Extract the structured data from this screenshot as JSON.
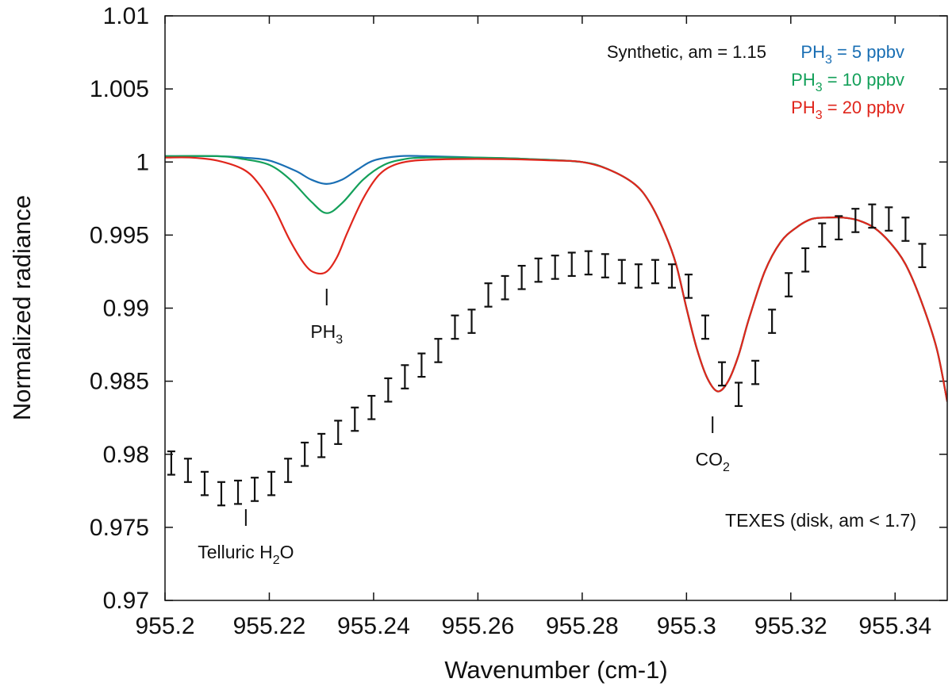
{
  "chart_data": {
    "type": "line",
    "xlabel": "Wavenumber (cm-1)",
    "ylabel": "Normalized radiance",
    "xlim": [
      955.2,
      955.35
    ],
    "ylim": [
      0.97,
      1.01
    ],
    "x_ticks": [
      955.2,
      955.22,
      955.24,
      955.26,
      955.28,
      955.3,
      955.32,
      955.34
    ],
    "x_tick_labels": [
      "955.2",
      "955.22",
      "955.24",
      "955.26",
      "955.28",
      "955.3",
      "955.32",
      "955.34"
    ],
    "y_ticks": [
      0.97,
      0.975,
      0.98,
      0.985,
      0.99,
      0.995,
      1.0,
      1.005,
      1.01
    ],
    "y_tick_labels": [
      "0.97",
      "0.975",
      "0.98",
      "0.985",
      "0.99",
      "0.995",
      "1",
      "1.005",
      "1.01"
    ],
    "grid": false,
    "legend": {
      "title": "Synthetic, am = 1.15",
      "position": "top-right",
      "entries": [
        {
          "prefix": "PH",
          "sub": "3",
          "suffix": " = 5 ppbv",
          "color": "#1a6fb4"
        },
        {
          "prefix": "PH",
          "sub": "3",
          "suffix": " = 10 ppbv",
          "color": "#14a05a"
        },
        {
          "prefix": "PH",
          "sub": "3",
          "suffix": " = 20 ppbv",
          "color": "#e0261c"
        }
      ]
    },
    "series": [
      {
        "name": "PH3 = 5 ppbv",
        "color": "#1a6fb4",
        "x": [
          955.2,
          955.21,
          955.215,
          955.22,
          955.225,
          955.228,
          955.231,
          955.234,
          955.237,
          955.24,
          955.245,
          955.25,
          955.26,
          955.27,
          955.28,
          955.285,
          955.29,
          955.293,
          955.296,
          955.298,
          955.3,
          955.302,
          955.304,
          955.306,
          955.308,
          955.31,
          955.312,
          955.315,
          955.318,
          955.321,
          955.324,
          955.327,
          955.33,
          955.333,
          955.336,
          955.339,
          955.342,
          955.345,
          955.348,
          955.35
        ],
        "y": [
          1.0004,
          1.0004,
          1.0003,
          1.0001,
          0.9994,
          0.9988,
          0.9985,
          0.9988,
          0.9995,
          1.0001,
          1.0004,
          1.0004,
          1.0003,
          1.0002,
          1.0,
          0.9995,
          0.9985,
          0.9972,
          0.995,
          0.993,
          0.99,
          0.9872,
          0.9852,
          0.9843,
          0.985,
          0.9868,
          0.9893,
          0.9925,
          0.9945,
          0.9955,
          0.9961,
          0.9962,
          0.9962,
          0.996,
          0.9955,
          0.9945,
          0.993,
          0.9905,
          0.9872,
          0.9836
        ]
      },
      {
        "name": "PH3 = 10 ppbv",
        "color": "#14a05a",
        "x": [
          955.2,
          955.21,
          955.215,
          955.22,
          955.224,
          955.228,
          955.231,
          955.234,
          955.238,
          955.242,
          955.246,
          955.25,
          955.26,
          955.27,
          955.28,
          955.285,
          955.29,
          955.293,
          955.296,
          955.298,
          955.3,
          955.302,
          955.304,
          955.306,
          955.308,
          955.31,
          955.312,
          955.315,
          955.318,
          955.321,
          955.324,
          955.327,
          955.33,
          955.333,
          955.336,
          955.339,
          955.342,
          955.345,
          955.348,
          955.35
        ],
        "y": [
          1.0004,
          1.0004,
          1.0002,
          0.9998,
          0.9988,
          0.9973,
          0.9965,
          0.9972,
          0.9988,
          0.9998,
          1.0002,
          1.0003,
          1.0003,
          1.0002,
          1.0,
          0.9995,
          0.9985,
          0.9972,
          0.995,
          0.993,
          0.99,
          0.9872,
          0.9852,
          0.9843,
          0.985,
          0.9868,
          0.9893,
          0.9925,
          0.9945,
          0.9955,
          0.9961,
          0.9962,
          0.9962,
          0.996,
          0.9955,
          0.9945,
          0.993,
          0.9905,
          0.9872,
          0.9836
        ]
      },
      {
        "name": "PH3 = 20 ppbv",
        "color": "#e0261c",
        "x": [
          955.2,
          955.205,
          955.21,
          955.215,
          955.218,
          955.221,
          955.224,
          955.227,
          955.229,
          955.231,
          955.233,
          955.235,
          955.238,
          955.241,
          955.244,
          955.248,
          955.255,
          955.265,
          955.275,
          955.28,
          955.285,
          955.29,
          955.293,
          955.296,
          955.298,
          955.3,
          955.302,
          955.304,
          955.306,
          955.308,
          955.31,
          955.312,
          955.315,
          955.318,
          955.321,
          955.324,
          955.327,
          955.33,
          955.333,
          955.336,
          955.339,
          955.342,
          955.345,
          955.348,
          955.35
        ],
        "y": [
          1.0003,
          1.0003,
          1.0001,
          0.9995,
          0.9985,
          0.9968,
          0.9946,
          0.9929,
          0.9924,
          0.9925,
          0.9935,
          0.9952,
          0.9975,
          0.9991,
          0.9998,
          1.0001,
          1.0002,
          1.0002,
          1.0001,
          1.0,
          0.9995,
          0.9985,
          0.9972,
          0.995,
          0.993,
          0.99,
          0.9872,
          0.9852,
          0.9843,
          0.985,
          0.9868,
          0.9893,
          0.9925,
          0.9945,
          0.9955,
          0.9961,
          0.9962,
          0.9962,
          0.996,
          0.9955,
          0.9945,
          0.993,
          0.9905,
          0.9872,
          0.9836
        ]
      }
    ],
    "observations": {
      "name": "TEXES (disk, am <  1.7)",
      "color": "#111111",
      "x": [
        955.2012,
        955.2044,
        955.2076,
        955.2108,
        955.214,
        955.2172,
        955.2204,
        955.2236,
        955.2268,
        955.23,
        955.2332,
        955.2364,
        955.2396,
        955.2428,
        955.246,
        955.2492,
        955.2524,
        955.2556,
        955.2588,
        955.262,
        955.2652,
        955.2684,
        955.2716,
        955.2748,
        955.278,
        955.2812,
        955.2844,
        955.2876,
        955.2908,
        955.294,
        955.2972,
        955.3004,
        955.3036,
        955.3068,
        955.31,
        955.3132,
        955.3164,
        955.3196,
        955.3228,
        955.326,
        955.3292,
        955.3324,
        955.3356,
        955.3388,
        955.342,
        955.3452
      ],
      "y": [
        0.9794,
        0.9789,
        0.978,
        0.9773,
        0.9774,
        0.9776,
        0.978,
        0.9789,
        0.98,
        0.9806,
        0.9815,
        0.9824,
        0.9832,
        0.9844,
        0.9853,
        0.9861,
        0.9871,
        0.9887,
        0.9891,
        0.9909,
        0.9914,
        0.9921,
        0.9926,
        0.9928,
        0.993,
        0.9931,
        0.9929,
        0.9925,
        0.9922,
        0.9925,
        0.9922,
        0.9915,
        0.9887,
        0.9855,
        0.9841,
        0.9856,
        0.9891,
        0.9916,
        0.9933,
        0.995,
        0.9955,
        0.996,
        0.9963,
        0.9961,
        0.9954,
        0.9936
      ],
      "err": 0.0008
    },
    "annotations": [
      {
        "id": "ph3",
        "prefix": "PH",
        "sub": "3",
        "suffix": "",
        "x": 955.231
      },
      {
        "id": "co2",
        "prefix": "CO",
        "sub": "2",
        "suffix": "",
        "x": 955.305
      },
      {
        "id": "h2o",
        "prefix": "Telluric H",
        "sub": "2",
        "suffix": "O",
        "x": 955.2155
      }
    ],
    "instrument_label": "TEXES (disk, am <  1.7)"
  }
}
